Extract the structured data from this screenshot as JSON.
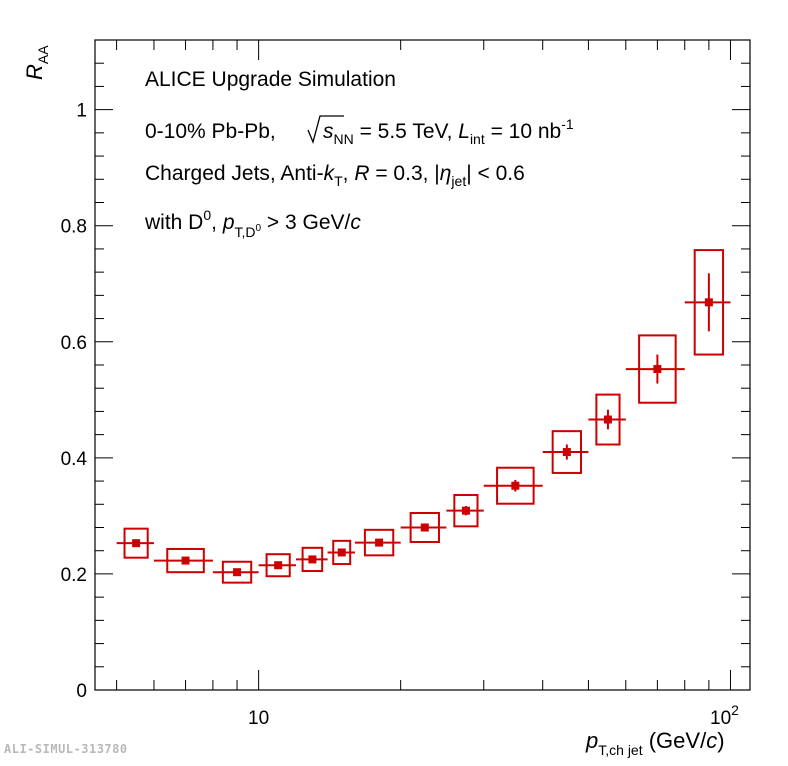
{
  "chart_data": {
    "type": "scatter",
    "title": "ALICE Upgrade Simulation",
    "annotations": {
      "collision_prefix": "0-10% Pb-Pb, ",
      "sqrt_s_label": "s",
      "sqrt_s_sub": "NN",
      "energy": " = 5.5 TeV, ",
      "lumi_label": "L",
      "lumi_sub": "int",
      "lumi_value": " = 10 nb",
      "lumi_exp": "-1",
      "jets_prefix": "Charged Jets, Anti-",
      "k_label": "k",
      "k_sub": "T",
      "radius_prefix": ", ",
      "radius_label": "R",
      "radius_value": " = 0.3, |",
      "eta_label": "η",
      "eta_sub": "jet",
      "eta_value": "| < 0.6",
      "d_prefix": "with D",
      "d_sup": "0",
      "pt_prefix": ", ",
      "pt_label": "p",
      "pt_sub": "T,D",
      "pt_sub_sup": "0",
      "pt_value": " > 3 GeV/",
      "pt_unit_c": "c"
    },
    "xlabel": {
      "label": "p",
      "sub": "T,ch jet",
      "unit": " (GeV/",
      "unit_c": "c",
      "close": ")"
    },
    "ylabel": {
      "label": "R",
      "sub": "AA"
    },
    "xscale": "log",
    "xlim": [
      4.5,
      110
    ],
    "ylim": [
      0,
      1.12
    ],
    "y_ticks": [
      {
        "value": 0,
        "label": "0"
      },
      {
        "value": 0.2,
        "label": "0.2"
      },
      {
        "value": 0.4,
        "label": "0.4"
      },
      {
        "value": 0.6,
        "label": "0.6"
      },
      {
        "value": 0.8,
        "label": "0.8"
      },
      {
        "value": 1.0,
        "label": "1"
      }
    ],
    "x_tick_labels": [
      {
        "value": 10,
        "label": "10"
      },
      {
        "value": 100,
        "label": "10",
        "exp": "2"
      }
    ],
    "series": [
      {
        "name": "Charged jets with D0",
        "color": "#cc0000",
        "points": [
          {
            "x": 5.5,
            "xlo": 5,
            "xhi": 6,
            "y": 0.253,
            "stat": 0.0,
            "sys": 0.025
          },
          {
            "x": 7,
            "xlo": 6,
            "xhi": 8,
            "y": 0.223,
            "stat": 0.0,
            "sys": 0.02
          },
          {
            "x": 9,
            "xlo": 8,
            "xhi": 10,
            "y": 0.203,
            "stat": 0.0,
            "sys": 0.018
          },
          {
            "x": 11,
            "xlo": 10,
            "xhi": 12,
            "y": 0.215,
            "stat": 0.0,
            "sys": 0.019
          },
          {
            "x": 13,
            "xlo": 12,
            "xhi": 14,
            "y": 0.225,
            "stat": 0.0,
            "sys": 0.02
          },
          {
            "x": 15,
            "xlo": 14,
            "xhi": 16,
            "y": 0.237,
            "stat": 0.0,
            "sys": 0.02
          },
          {
            "x": 18,
            "xlo": 16,
            "xhi": 20,
            "y": 0.254,
            "stat": 0.0,
            "sys": 0.022
          },
          {
            "x": 22.5,
            "xlo": 20,
            "xhi": 25,
            "y": 0.28,
            "stat": 0.007,
            "sys": 0.025
          },
          {
            "x": 27.5,
            "xlo": 25,
            "xhi": 30,
            "y": 0.309,
            "stat": 0.008,
            "sys": 0.027
          },
          {
            "x": 35,
            "xlo": 30,
            "xhi": 40,
            "y": 0.352,
            "stat": 0.01,
            "sys": 0.031
          },
          {
            "x": 45,
            "xlo": 40,
            "xhi": 50,
            "y": 0.41,
            "stat": 0.013,
            "sys": 0.036
          },
          {
            "x": 55,
            "xlo": 50,
            "xhi": 60,
            "y": 0.466,
            "stat": 0.017,
            "sys": 0.043
          },
          {
            "x": 70,
            "xlo": 60,
            "xhi": 80,
            "y": 0.553,
            "stat": 0.025,
            "sys": 0.058
          },
          {
            "x": 90,
            "xlo": 80,
            "xhi": 100,
            "y": 0.668,
            "stat": 0.05,
            "sys": 0.09
          }
        ]
      }
    ]
  },
  "footer": "ALI-SIMUL-313780"
}
